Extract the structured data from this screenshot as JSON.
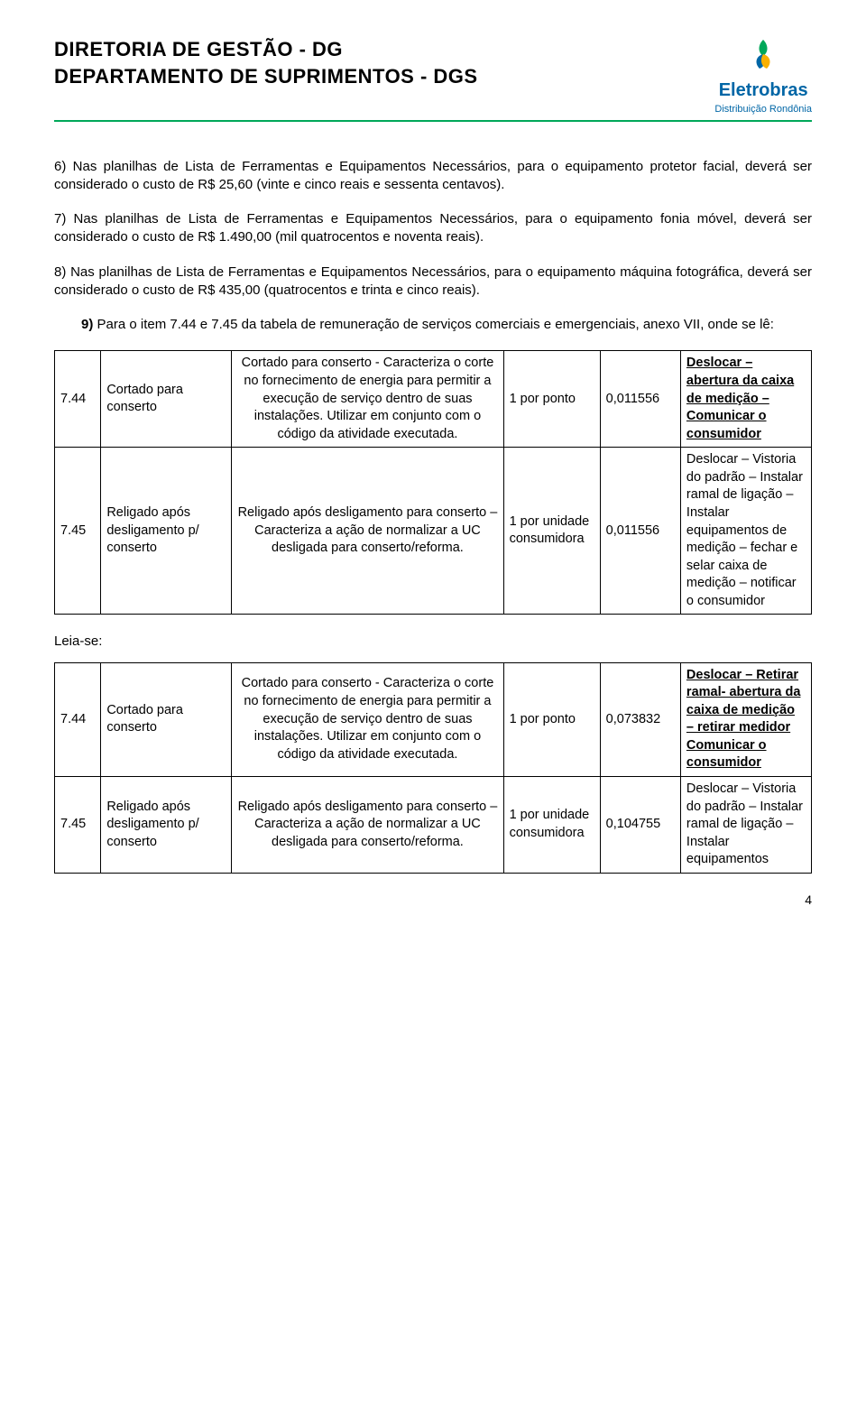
{
  "header": {
    "title1": "DIRETORIA DE GESTÃO - DG",
    "title2": "DEPARTAMENTO DE SUPRIMENTOS - DGS",
    "brand": "Eletrobras",
    "brand_sub": "Distribuição Rondônia"
  },
  "paras": {
    "p6": "6) Nas planilhas de Lista de Ferramentas e Equipamentos Necessários, para o equipamento protetor facial, deverá ser considerado o custo de R$ 25,60 (vinte e cinco reais e sessenta centavos).",
    "p7": "7) Nas planilhas de Lista de Ferramentas e Equipamentos Necessários, para o equipamento fonia móvel, deverá ser considerado o custo de R$ 1.490,00 (mil quatrocentos e noventa reais).",
    "p8": "8) Nas planilhas de Lista de Ferramentas e Equipamentos Necessários, para o equipamento máquina fotográfica, deverá ser considerado o custo de R$ 435,00 (quatrocentos e trinta e cinco reais).",
    "p9_lead": "9) ",
    "p9": "Para o item 7.44 e 7.45 da tabela de remuneração de serviços comerciais e emergenciais, anexo VII, onde se lê:"
  },
  "table1": {
    "rows": [
      {
        "id": "7.44",
        "name": "Cortado para conserto",
        "desc": "Cortado para conserto  - Caracteriza o corte no fornecimento de energia para permitir a execução de serviço dentro de suas instalações. Utilizar em conjunto com o código da atividade executada.",
        "unit": "1 por ponto",
        "value": "0,011556",
        "action_parts": [
          {
            "t": "Deslocar – abertura da caixa de medição – Comunicar o consumidor",
            "b": true,
            "u": true
          }
        ]
      },
      {
        "id": "7.45",
        "name": "Religado após desligamento p/ conserto",
        "desc": "Religado após desligamento  para conserto – Caracteriza a ação de normalizar a UC desligada para conserto/reforma.",
        "unit": "1 por unidade consumidora",
        "value": "0,011556",
        "action_parts": [
          {
            "t": "Deslocar – Vistoria do padrão – Instalar ramal de ligação – Instalar equipamentos de medição – fechar e selar caixa de medição – notificar  o consumidor",
            "b": false,
            "u": false
          }
        ]
      }
    ]
  },
  "leia_se": "Leia-se:",
  "table2": {
    "rows": [
      {
        "id": "7.44",
        "name": "Cortado para conserto",
        "desc": "Cortado para conserto  - Caracteriza o corte no fornecimento de energia para permitir a execução de serviço dentro de suas instalações. Utilizar em conjunto com o código da atividade executada.",
        "unit": "1 por ponto",
        "value": "0,073832",
        "action_parts": [
          {
            "t": "Deslocar – Retirar ramal- abertura da caixa de medição – retirar medidor Comunicar o consumidor",
            "b": true,
            "u": true
          }
        ]
      },
      {
        "id": "7.45",
        "name": "Religado após desligamento p/ conserto",
        "desc": "Religado após desligamento  para conserto – Caracteriza a ação de normalizar a UC desligada para conserto/reforma.",
        "unit": "1 por unidade consumidora",
        "value": "0,104755",
        "action_parts": [
          {
            "t": "Deslocar – Vistoria do padrão – Instalar ramal de ligação – Instalar equipamentos",
            "b": false,
            "u": false
          }
        ]
      }
    ]
  },
  "page_number": "4",
  "colors": {
    "rule": "#00a859",
    "brand": "#0066a6",
    "text": "#000000",
    "border": "#000000",
    "bg": "#ffffff"
  }
}
